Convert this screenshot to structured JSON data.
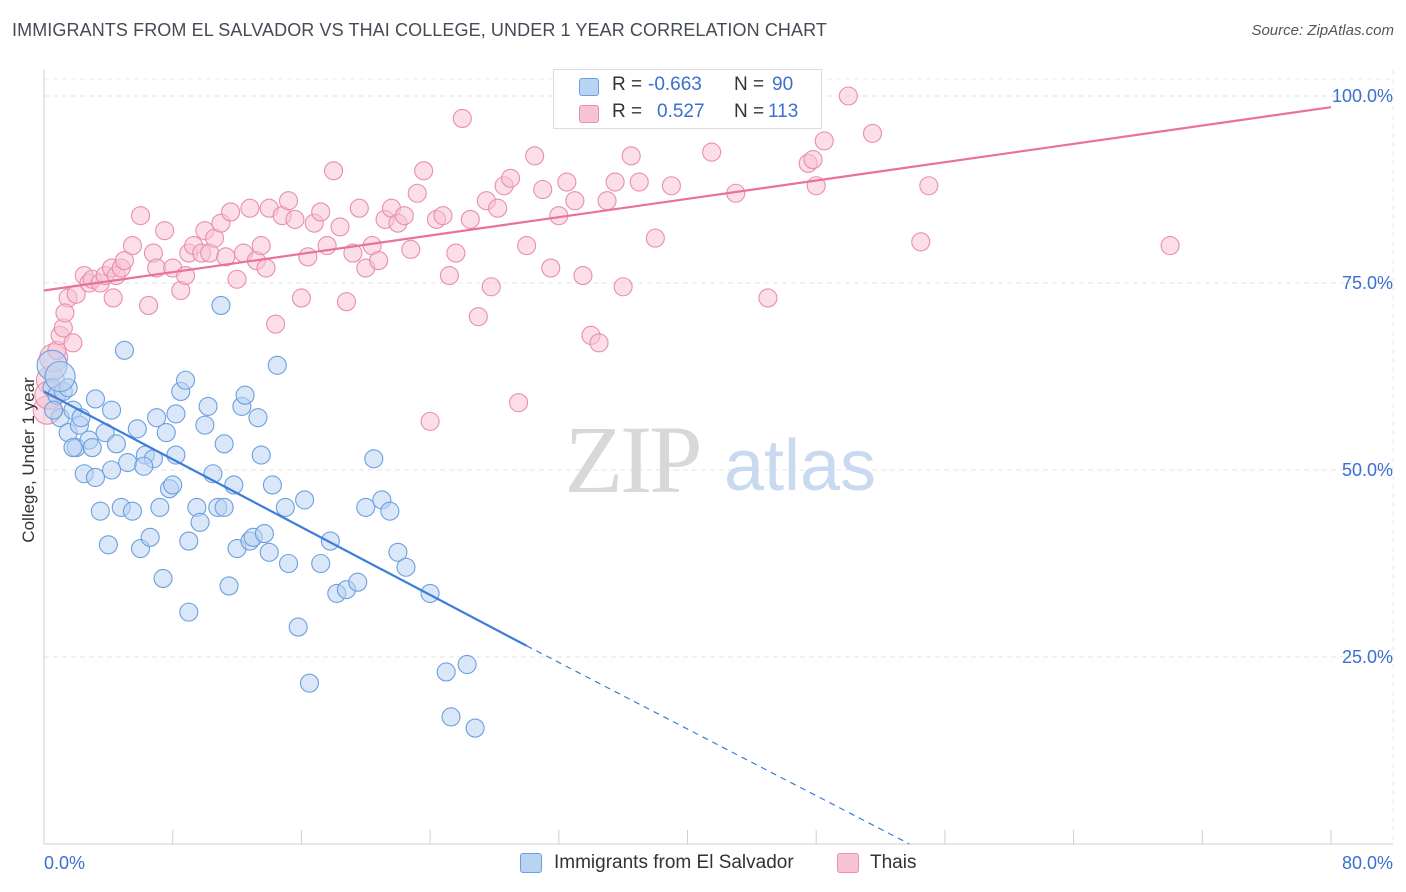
{
  "title": "IMMIGRANTS FROM EL SALVADOR VS THAI COLLEGE, UNDER 1 YEAR CORRELATION CHART",
  "source": "Source: ZipAtlas.com",
  "watermark": {
    "zip": "ZIP",
    "atlas": "atlas"
  },
  "legend": {
    "rows": [
      {
        "r_label": "R =",
        "r_value": "-0.663",
        "n_label": "N =",
        "n_value": "90"
      },
      {
        "r_label": "R =",
        "r_value": "0.527",
        "n_label": "N =",
        "n_value": "113"
      }
    ]
  },
  "chart_data": {
    "type": "scatter",
    "title": "IMMIGRANTS FROM EL SALVADOR VS THAI COLLEGE, UNDER 1 YEAR CORRELATION CHART",
    "xlabel": "",
    "ylabel": "College, Under 1 year",
    "xlim": [
      0,
      80
    ],
    "ylim": [
      0,
      103
    ],
    "x_tick_labels": [
      "0.0%",
      "80.0%"
    ],
    "y_tick_values": [
      25,
      50,
      75,
      100
    ],
    "y_tick_labels": [
      "25.0%",
      "50.0%",
      "75.0%",
      "100.0%"
    ],
    "grid": true,
    "legend_position": "bottom",
    "colors": {
      "blue": "#3b7dd8",
      "pink": "#e8729a",
      "blue_fill": "#b9d3f3",
      "pink_fill": "#f7c3d4",
      "axis_text": "#3b6fd0"
    },
    "series": [
      {
        "name": "Immigrants from El Salvador",
        "color": "#3b7dd8",
        "R": -0.663,
        "N": 90,
        "trend": {
          "x_start": 0,
          "y_start": 60.5,
          "x_solid_end": 30,
          "y_solid_end": 26.5,
          "x_dash_end": 53.8,
          "y_dash_end": 0
        },
        "points": [
          [
            0.5,
            64
          ],
          [
            0.5,
            61
          ],
          [
            0.8,
            60
          ],
          [
            1,
            57
          ],
          [
            1.2,
            60.5
          ],
          [
            1.5,
            55
          ],
          [
            1.5,
            61
          ],
          [
            1.8,
            58
          ],
          [
            2,
            53
          ],
          [
            2.2,
            56
          ],
          [
            2.5,
            49.5
          ],
          [
            2.8,
            54
          ],
          [
            3,
            53
          ],
          [
            3.2,
            59.5
          ],
          [
            3.5,
            44.5
          ],
          [
            3.8,
            55
          ],
          [
            4,
            40
          ],
          [
            4.2,
            50
          ],
          [
            4.5,
            53.5
          ],
          [
            4.8,
            45
          ],
          [
            5,
            66
          ],
          [
            5.2,
            51
          ],
          [
            5.5,
            44.5
          ],
          [
            5.8,
            55.5
          ],
          [
            6,
            39.5
          ],
          [
            6.3,
            52
          ],
          [
            6.6,
            41
          ],
          [
            6.8,
            51.5
          ],
          [
            7,
            57
          ],
          [
            7.2,
            45
          ],
          [
            7.4,
            35.5
          ],
          [
            7.6,
            55
          ],
          [
            7.8,
            47.5
          ],
          [
            8,
            48
          ],
          [
            8.2,
            52
          ],
          [
            8.5,
            60.5
          ],
          [
            8.8,
            62
          ],
          [
            9,
            40.5
          ],
          [
            9,
            31
          ],
          [
            9.5,
            45
          ],
          [
            9.7,
            43
          ],
          [
            10,
            56
          ],
          [
            10.2,
            58.5
          ],
          [
            10.5,
            49.5
          ],
          [
            10.8,
            45
          ],
          [
            11,
            72
          ],
          [
            11.2,
            53.5
          ],
          [
            11.5,
            34.5
          ],
          [
            11.8,
            48
          ],
          [
            12,
            39.5
          ],
          [
            12.3,
            58.5
          ],
          [
            12.5,
            60
          ],
          [
            12.8,
            40.5
          ],
          [
            13,
            41
          ],
          [
            13.3,
            57
          ],
          [
            13.5,
            52
          ],
          [
            14,
            39
          ],
          [
            14.2,
            48
          ],
          [
            14.5,
            64
          ],
          [
            15,
            45
          ],
          [
            15.2,
            37.5
          ],
          [
            15.8,
            29
          ],
          [
            16.5,
            21.5
          ],
          [
            17.2,
            37.5
          ],
          [
            17.8,
            40.5
          ],
          [
            18.2,
            33.5
          ],
          [
            18.8,
            34
          ],
          [
            19.5,
            35
          ],
          [
            20,
            45
          ],
          [
            20.5,
            51.5
          ],
          [
            21,
            46
          ],
          [
            21.5,
            44.5
          ],
          [
            22,
            39
          ],
          [
            22.5,
            37
          ],
          [
            24,
            33.5
          ],
          [
            25,
            23
          ],
          [
            25.3,
            17
          ],
          [
            26.3,
            24
          ],
          [
            26.8,
            15.5
          ],
          [
            1,
            62.5
          ],
          [
            1.8,
            53
          ],
          [
            3.2,
            49
          ],
          [
            0.6,
            58
          ],
          [
            2.3,
            57
          ],
          [
            4.2,
            58
          ],
          [
            6.2,
            50.5
          ],
          [
            8.2,
            57.5
          ],
          [
            11.2,
            45
          ],
          [
            13.7,
            41.5
          ],
          [
            16.2,
            46
          ]
        ]
      },
      {
        "name": "Thais",
        "color": "#e8729a",
        "R": 0.527,
        "N": 113,
        "trend": {
          "x_start": 0,
          "y_start": 74,
          "x_end": 80,
          "y_end": 98.5
        },
        "points": [
          [
            0.2,
            58
          ],
          [
            0.4,
            62
          ],
          [
            0.6,
            65
          ],
          [
            0.8,
            66
          ],
          [
            1,
            68
          ],
          [
            1.2,
            69
          ],
          [
            1.5,
            73
          ],
          [
            1.8,
            67
          ],
          [
            2,
            73.5
          ],
          [
            2.5,
            76
          ],
          [
            2.8,
            75
          ],
          [
            3,
            75.5
          ],
          [
            3.5,
            75
          ],
          [
            3.8,
            76
          ],
          [
            4.2,
            77
          ],
          [
            4.5,
            76
          ],
          [
            4.8,
            77
          ],
          [
            5,
            78
          ],
          [
            5.5,
            80
          ],
          [
            6,
            84
          ],
          [
            6.5,
            72
          ],
          [
            6.8,
            79
          ],
          [
            7,
            77
          ],
          [
            7.5,
            82
          ],
          [
            8,
            77
          ],
          [
            8.5,
            74
          ],
          [
            8.8,
            76
          ],
          [
            9,
            79
          ],
          [
            9.3,
            80
          ],
          [
            9.8,
            79
          ],
          [
            10,
            82
          ],
          [
            10.3,
            79
          ],
          [
            10.6,
            81
          ],
          [
            11,
            83
          ],
          [
            11.3,
            78.5
          ],
          [
            11.6,
            84.5
          ],
          [
            12,
            75.5
          ],
          [
            12.4,
            79
          ],
          [
            12.8,
            85
          ],
          [
            13.2,
            78
          ],
          [
            13.5,
            80
          ],
          [
            13.8,
            77
          ],
          [
            14,
            85
          ],
          [
            14.4,
            69.5
          ],
          [
            14.8,
            84
          ],
          [
            15.2,
            86
          ],
          [
            15.6,
            83.5
          ],
          [
            16,
            73
          ],
          [
            16.4,
            78.5
          ],
          [
            16.8,
            83
          ],
          [
            17.2,
            84.5
          ],
          [
            17.6,
            80
          ],
          [
            18,
            90
          ],
          [
            18.4,
            82.5
          ],
          [
            18.8,
            72.5
          ],
          [
            19.2,
            79
          ],
          [
            19.6,
            85
          ],
          [
            20,
            77
          ],
          [
            20.4,
            80
          ],
          [
            20.8,
            78
          ],
          [
            21.2,
            83.5
          ],
          [
            21.6,
            85
          ],
          [
            22,
            83
          ],
          [
            22.4,
            84
          ],
          [
            22.8,
            79.5
          ],
          [
            23.2,
            87
          ],
          [
            23.6,
            90
          ],
          [
            24,
            56.5
          ],
          [
            24.4,
            83.5
          ],
          [
            24.8,
            84
          ],
          [
            25.2,
            76
          ],
          [
            25.6,
            79
          ],
          [
            26,
            97
          ],
          [
            26.5,
            83.5
          ],
          [
            27,
            70.5
          ],
          [
            27.5,
            86
          ],
          [
            27.8,
            74.5
          ],
          [
            28.2,
            85
          ],
          [
            28.6,
            88
          ],
          [
            29,
            89
          ],
          [
            29.5,
            59
          ],
          [
            30,
            80
          ],
          [
            30.5,
            92
          ],
          [
            31,
            87.5
          ],
          [
            31.5,
            77
          ],
          [
            32,
            84
          ],
          [
            32.5,
            88.5
          ],
          [
            33,
            86
          ],
          [
            33.5,
            76
          ],
          [
            34,
            68
          ],
          [
            34.5,
            67
          ],
          [
            35,
            86
          ],
          [
            35.5,
            88.5
          ],
          [
            36,
            74.5
          ],
          [
            36.5,
            92
          ],
          [
            37,
            88.5
          ],
          [
            38,
            81
          ],
          [
            39,
            88
          ],
          [
            41.5,
            92.5
          ],
          [
            43,
            87
          ],
          [
            45,
            73
          ],
          [
            47.5,
            91
          ],
          [
            47.8,
            91.5
          ],
          [
            48,
            88
          ],
          [
            48.5,
            94
          ],
          [
            50,
            100
          ],
          [
            51.5,
            95
          ],
          [
            54.5,
            80.5
          ],
          [
            55,
            88
          ],
          [
            70,
            80
          ],
          [
            0.3,
            60
          ],
          [
            1.3,
            71
          ],
          [
            4.3,
            73
          ]
        ]
      }
    ]
  },
  "bottom_legend": [
    {
      "label": "Immigrants from El Salvador"
    },
    {
      "label": "Thais"
    }
  ]
}
